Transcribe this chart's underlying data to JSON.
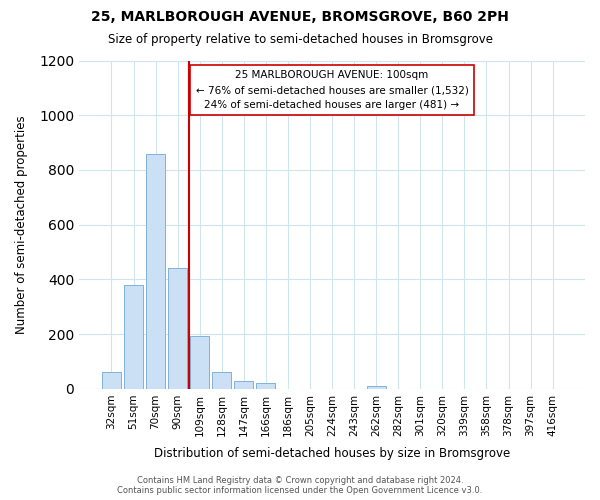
{
  "title": "25, MARLBOROUGH AVENUE, BROMSGROVE, B60 2PH",
  "subtitle": "Size of property relative to semi-detached houses in Bromsgrove",
  "xlabel": "Distribution of semi-detached houses by size in Bromsgrove",
  "ylabel": "Number of semi-detached properties",
  "bar_labels": [
    "32sqm",
    "51sqm",
    "70sqm",
    "90sqm",
    "109sqm",
    "128sqm",
    "147sqm",
    "166sqm",
    "186sqm",
    "205sqm",
    "224sqm",
    "243sqm",
    "262sqm",
    "282sqm",
    "301sqm",
    "320sqm",
    "339sqm",
    "358sqm",
    "378sqm",
    "397sqm",
    "416sqm"
  ],
  "bar_values": [
    60,
    380,
    860,
    440,
    195,
    60,
    28,
    20,
    0,
    0,
    0,
    0,
    10,
    0,
    0,
    0,
    0,
    0,
    0,
    0,
    0
  ],
  "bar_color": "#cce0f5",
  "bar_edge_color": "#7fb3d9",
  "vline_color": "#cc0000",
  "annotation_title": "25 MARLBOROUGH AVENUE: 100sqm",
  "annotation_line1": "← 76% of semi-detached houses are smaller (1,532)",
  "annotation_line2": "24% of semi-detached houses are larger (481) →",
  "annotation_box_color": "white",
  "annotation_box_edge": "#cc0000",
  "ylim": [
    0,
    1200
  ],
  "yticks": [
    0,
    200,
    400,
    600,
    800,
    1000,
    1200
  ],
  "footer1": "Contains HM Land Registry data © Crown copyright and database right 2024.",
  "footer2": "Contains public sector information licensed under the Open Government Licence v3.0.",
  "background_color": "#ffffff",
  "grid_color": "#d0e4f0"
}
